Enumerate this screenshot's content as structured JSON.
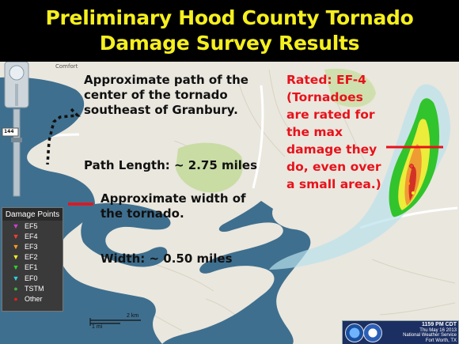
{
  "title": {
    "line1": "Preliminary Hood County Tornado",
    "line2": "Damage Survey Results"
  },
  "annotations": {
    "path_line1": "Approximate path of the",
    "path_line2": "center of the tornado",
    "path_line3": "southeast of Granbury.",
    "path_length": "Path Length: ~ 2.75 miles",
    "width_line1": "Approximate width of",
    "width_line2": "the tornado.",
    "width": "Width: ~ 0.50 miles"
  },
  "rating": {
    "lines": [
      "Rated:  EF-4",
      "(Tornadoes",
      "are rated for",
      "the max",
      "damage they",
      "do, even over",
      "a small area.)"
    ]
  },
  "legend": {
    "title": "Damage Points",
    "items": [
      {
        "label": "EF5",
        "symbol": "▼",
        "color": "#d040d0"
      },
      {
        "label": "EF4",
        "symbol": "▼",
        "color": "#ff3a3a"
      },
      {
        "label": "EF3",
        "symbol": "▼",
        "color": "#ff9a20"
      },
      {
        "label": "EF2",
        "symbol": "▼",
        "color": "#f0f020"
      },
      {
        "label": "EF1",
        "symbol": "▼",
        "color": "#30d030"
      },
      {
        "label": "EF0",
        "symbol": "▼",
        "color": "#30d0e0"
      },
      {
        "label": "TSTM",
        "symbol": "●",
        "color": "#40b040"
      },
      {
        "label": "Other",
        "symbol": "●",
        "color": "#e02020"
      }
    ]
  },
  "map_labels": {
    "route": "144",
    "comfort": "Comfort",
    "scale_km": "2 km",
    "scale_mi": "1 mi"
  },
  "nws": {
    "time": "1159 PM CDT",
    "date": "Thu May 16 2013",
    "office": "National Weather Service",
    "location": "Fort Worth, TX"
  },
  "colors": {
    "title": "#f5ef1e",
    "rating": "#e8121b",
    "water": "#3f6f8e",
    "land": "#eae7de",
    "park": "#c8dca4",
    "path_outer": "#b9e1ec",
    "path_green": "#32c42c",
    "path_yellow": "#ecec3a",
    "path_orange": "#ef9b33",
    "path_red": "#d23226"
  }
}
